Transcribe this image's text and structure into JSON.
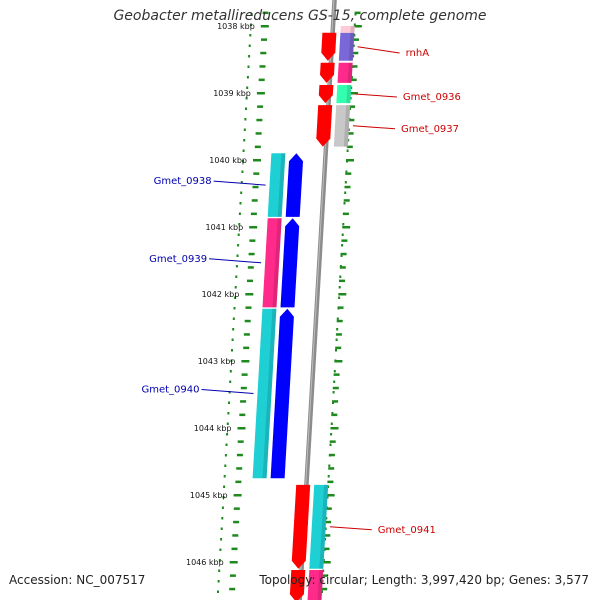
{
  "title": "Geobacter metallireducens GS-15, complete genome",
  "footer": {
    "accession": "Accession: NC_007517",
    "summary": "Topology: circular; Length: 3,997,420 bp; Genes: 3,577"
  },
  "colors": {
    "backbone": "#8c8c8c",
    "ticks": "#1e8a1e",
    "reverse_label": "#cc0000",
    "forward_label": "#0000b0",
    "reverse_cds": "#ff0000",
    "forward_cds": "#0000ff",
    "teal_feature": "#1ecfd4",
    "pink_feature": "#ff2a8a",
    "purple_feature": "#7b68d8",
    "mint_feature": "#33ffb0",
    "grey_feature": "#c8c8c8",
    "light_pink_feature": "#ffcad8"
  },
  "chart_data": {
    "type": "genome_map",
    "units": "kbp",
    "visible_range_kbp": [
      1038,
      1046
    ],
    "tick_labels": [
      {
        "kbp": 1038,
        "text": "1038 kbp"
      },
      {
        "kbp": 1039,
        "text": "1039 kbp"
      },
      {
        "kbp": 1040,
        "text": "1040 kbp"
      },
      {
        "kbp": 1041,
        "text": "1041 kbp"
      },
      {
        "kbp": 1042,
        "text": "1042 kbp"
      },
      {
        "kbp": 1043,
        "text": "1043 kbp"
      },
      {
        "kbp": 1044,
        "text": "1044 kbp"
      },
      {
        "kbp": 1045,
        "text": "1045 kbp"
      },
      {
        "kbp": 1046,
        "text": "1046 kbp"
      }
    ],
    "genes": [
      {
        "name": "rnhA",
        "strand": "reverse",
        "start_kbp": 1038.1,
        "end_kbp": 1038.52
      },
      {
        "name": "",
        "strand": "reverse",
        "start_kbp": 1038.55,
        "end_kbp": 1038.85
      },
      {
        "name": "Gmet_0936",
        "strand": "reverse",
        "start_kbp": 1038.88,
        "end_kbp": 1039.15
      },
      {
        "name": "Gmet_0937",
        "strand": "reverse",
        "start_kbp": 1039.18,
        "end_kbp": 1039.8
      },
      {
        "name": "Gmet_0938",
        "strand": "forward",
        "start_kbp": 1039.9,
        "end_kbp": 1040.85
      },
      {
        "name": "Gmet_0939",
        "strand": "forward",
        "start_kbp": 1040.87,
        "end_kbp": 1042.2
      },
      {
        "name": "Gmet_0940",
        "strand": "forward",
        "start_kbp": 1042.22,
        "end_kbp": 1044.75
      },
      {
        "name": "Gmet_0941",
        "strand": "reverse",
        "start_kbp": 1044.85,
        "end_kbp": 1046.1
      },
      {
        "name": "",
        "strand": "reverse",
        "start_kbp": 1046.12,
        "end_kbp": 1046.6
      }
    ],
    "annotations": [
      {
        "strand": "reverse",
        "start_kbp": 1038.1,
        "end_kbp": 1038.52,
        "color": "purple"
      },
      {
        "strand": "reverse",
        "start_kbp": 1038.55,
        "end_kbp": 1038.85,
        "color": "pink"
      },
      {
        "strand": "reverse",
        "start_kbp": 1038.88,
        "end_kbp": 1039.15,
        "color": "mint"
      },
      {
        "strand": "reverse",
        "start_kbp": 1039.18,
        "end_kbp": 1039.8,
        "color": "grey"
      },
      {
        "strand": "reverse",
        "start_kbp": 1038.0,
        "end_kbp": 1038.1,
        "color": "light_pink"
      },
      {
        "strand": "forward",
        "start_kbp": 1039.9,
        "end_kbp": 1040.85,
        "color": "teal"
      },
      {
        "strand": "forward",
        "start_kbp": 1040.87,
        "end_kbp": 1042.2,
        "color": "pink"
      },
      {
        "strand": "forward",
        "start_kbp": 1042.22,
        "end_kbp": 1044.75,
        "color": "teal"
      },
      {
        "strand": "reverse",
        "start_kbp": 1044.85,
        "end_kbp": 1046.1,
        "color": "teal"
      },
      {
        "strand": "reverse",
        "start_kbp": 1046.12,
        "end_kbp": 1046.6,
        "color": "pink"
      }
    ]
  }
}
